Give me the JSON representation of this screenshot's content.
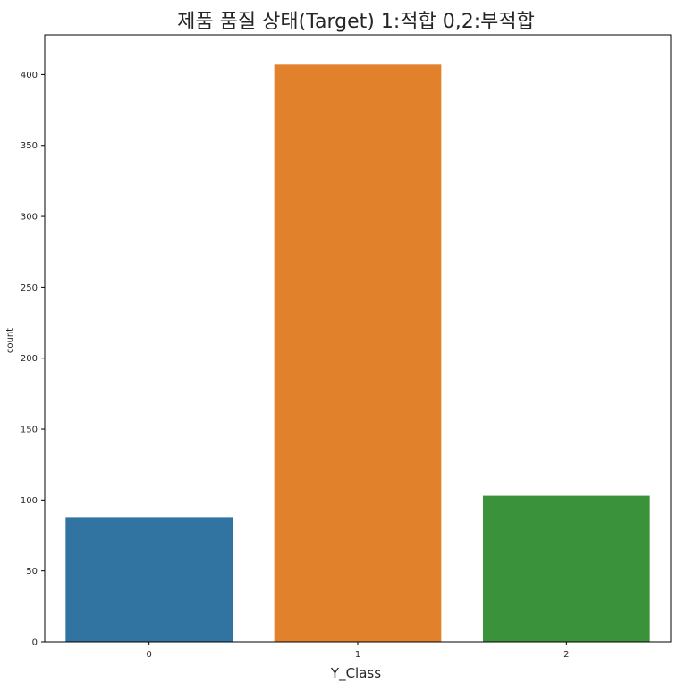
{
  "chart_data": {
    "type": "bar",
    "title": "제품 품질 상태(Target) 1:적합 0,2:부적합",
    "xlabel": "Y_Class",
    "ylabel": "count",
    "categories": [
      "0",
      "1",
      "2"
    ],
    "values": [
      88,
      407,
      103
    ],
    "colors": [
      "#3274a1",
      "#e1812c",
      "#3a923a"
    ],
    "ylim": [
      0,
      428
    ],
    "yticks": [
      0,
      50,
      100,
      150,
      200,
      250,
      300,
      350,
      400
    ],
    "grid": false,
    "legend": "none"
  }
}
